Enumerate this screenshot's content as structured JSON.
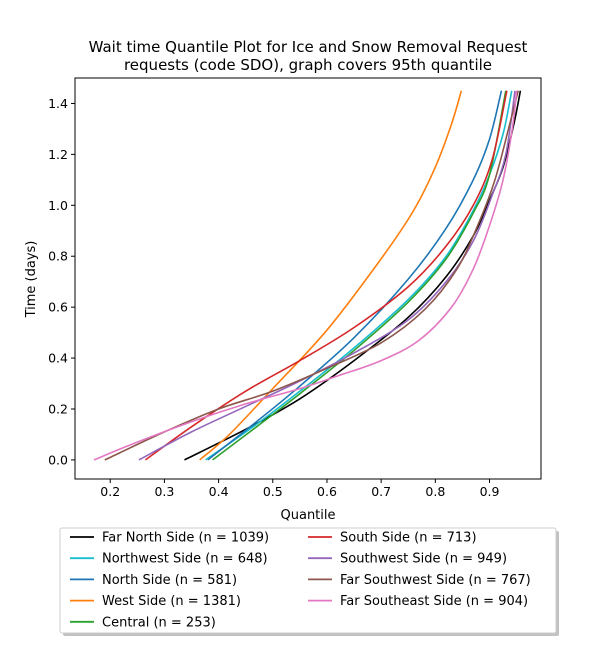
{
  "chart_data": {
    "type": "line",
    "title_lines": [
      "Wait time Quantile Plot for Ice and Snow Removal Request",
      "requests (code SDO), graph covers 95th quantile"
    ],
    "xlabel": "Quantile",
    "ylabel": "Time (days)",
    "xlim": [
      0.135,
      0.995
    ],
    "ylim": [
      -0.075,
      1.5
    ],
    "xticks": [
      0.2,
      0.3,
      0.4,
      0.5,
      0.6,
      0.7,
      0.8,
      0.9
    ],
    "yticks": [
      0.0,
      0.2,
      0.4,
      0.6,
      0.8,
      1.0,
      1.2,
      1.4
    ],
    "grid": false,
    "legend_placement": "below",
    "series": [
      {
        "name": "Far North Side (n = 1039)",
        "color": "#000000",
        "points": [
          [
            0.337,
            0.0
          ],
          [
            0.45,
            0.12
          ],
          [
            0.55,
            0.24
          ],
          [
            0.65,
            0.39
          ],
          [
            0.75,
            0.56
          ],
          [
            0.82,
            0.72
          ],
          [
            0.87,
            0.88
          ],
          [
            0.9,
            1.02
          ],
          [
            0.925,
            1.15
          ],
          [
            0.945,
            1.32
          ],
          [
            0.957,
            1.45
          ]
        ]
      },
      {
        "name": "Northwest Side (n = 648)",
        "color": "#17becf",
        "points": [
          [
            0.376,
            0.0
          ],
          [
            0.47,
            0.14
          ],
          [
            0.55,
            0.27
          ],
          [
            0.65,
            0.44
          ],
          [
            0.75,
            0.63
          ],
          [
            0.82,
            0.8
          ],
          [
            0.87,
            0.98
          ],
          [
            0.9,
            1.12
          ],
          [
            0.925,
            1.28
          ],
          [
            0.941,
            1.45
          ]
        ]
      },
      {
        "name": "North Side (n = 581)",
        "color": "#1f77b4",
        "points": [
          [
            0.38,
            0.0
          ],
          [
            0.47,
            0.15
          ],
          [
            0.55,
            0.29
          ],
          [
            0.65,
            0.48
          ],
          [
            0.75,
            0.71
          ],
          [
            0.82,
            0.91
          ],
          [
            0.87,
            1.1
          ],
          [
            0.9,
            1.26
          ],
          [
            0.922,
            1.45
          ]
        ]
      },
      {
        "name": "West Side (n = 1381)",
        "color": "#ff7f0e",
        "points": [
          [
            0.365,
            0.0
          ],
          [
            0.42,
            0.1
          ],
          [
            0.5,
            0.28
          ],
          [
            0.6,
            0.51
          ],
          [
            0.7,
            0.79
          ],
          [
            0.76,
            0.98
          ],
          [
            0.8,
            1.15
          ],
          [
            0.83,
            1.32
          ],
          [
            0.848,
            1.45
          ]
        ]
      },
      {
        "name": "Central (n = 253)",
        "color": "#2ca02c",
        "points": [
          [
            0.389,
            0.0
          ],
          [
            0.47,
            0.13
          ],
          [
            0.55,
            0.26
          ],
          [
            0.65,
            0.43
          ],
          [
            0.75,
            0.62
          ],
          [
            0.82,
            0.79
          ],
          [
            0.87,
            0.97
          ],
          [
            0.9,
            1.12
          ],
          [
            0.93,
            1.45
          ]
        ]
      },
      {
        "name": "South Side (n = 713)",
        "color": "#d62728",
        "points": [
          [
            0.265,
            0.0
          ],
          [
            0.35,
            0.13
          ],
          [
            0.45,
            0.27
          ],
          [
            0.55,
            0.39
          ],
          [
            0.65,
            0.52
          ],
          [
            0.75,
            0.68
          ],
          [
            0.82,
            0.84
          ],
          [
            0.87,
            1.0
          ],
          [
            0.905,
            1.18
          ],
          [
            0.932,
            1.45
          ]
        ]
      },
      {
        "name": "Southwest Side (n = 949)",
        "color": "#9467bd",
        "points": [
          [
            0.253,
            0.0
          ],
          [
            0.35,
            0.11
          ],
          [
            0.45,
            0.21
          ],
          [
            0.55,
            0.31
          ],
          [
            0.65,
            0.42
          ],
          [
            0.75,
            0.55
          ],
          [
            0.82,
            0.7
          ],
          [
            0.87,
            0.86
          ],
          [
            0.905,
            1.04
          ],
          [
            0.93,
            1.2
          ],
          [
            0.947,
            1.45
          ]
        ]
      },
      {
        "name": "Far Southwest Side (n = 767)",
        "color": "#8c564b",
        "points": [
          [
            0.19,
            0.0
          ],
          [
            0.3,
            0.11
          ],
          [
            0.4,
            0.2
          ],
          [
            0.5,
            0.27
          ],
          [
            0.6,
            0.36
          ],
          [
            0.7,
            0.46
          ],
          [
            0.78,
            0.59
          ],
          [
            0.84,
            0.75
          ],
          [
            0.88,
            0.93
          ],
          [
            0.91,
            1.1
          ],
          [
            0.935,
            1.3
          ],
          [
            0.953,
            1.45
          ]
        ]
      },
      {
        "name": "Far Southeast Side (n = 904)",
        "color": "#e377c2",
        "points": [
          [
            0.17,
            0.0
          ],
          [
            0.25,
            0.07
          ],
          [
            0.35,
            0.15
          ],
          [
            0.45,
            0.22
          ],
          [
            0.55,
            0.28
          ],
          [
            0.62,
            0.33
          ],
          [
            0.7,
            0.39
          ],
          [
            0.77,
            0.47
          ],
          [
            0.83,
            0.6
          ],
          [
            0.87,
            0.75
          ],
          [
            0.9,
            0.92
          ],
          [
            0.925,
            1.1
          ],
          [
            0.942,
            1.3
          ],
          [
            0.95,
            1.45
          ]
        ]
      }
    ]
  }
}
